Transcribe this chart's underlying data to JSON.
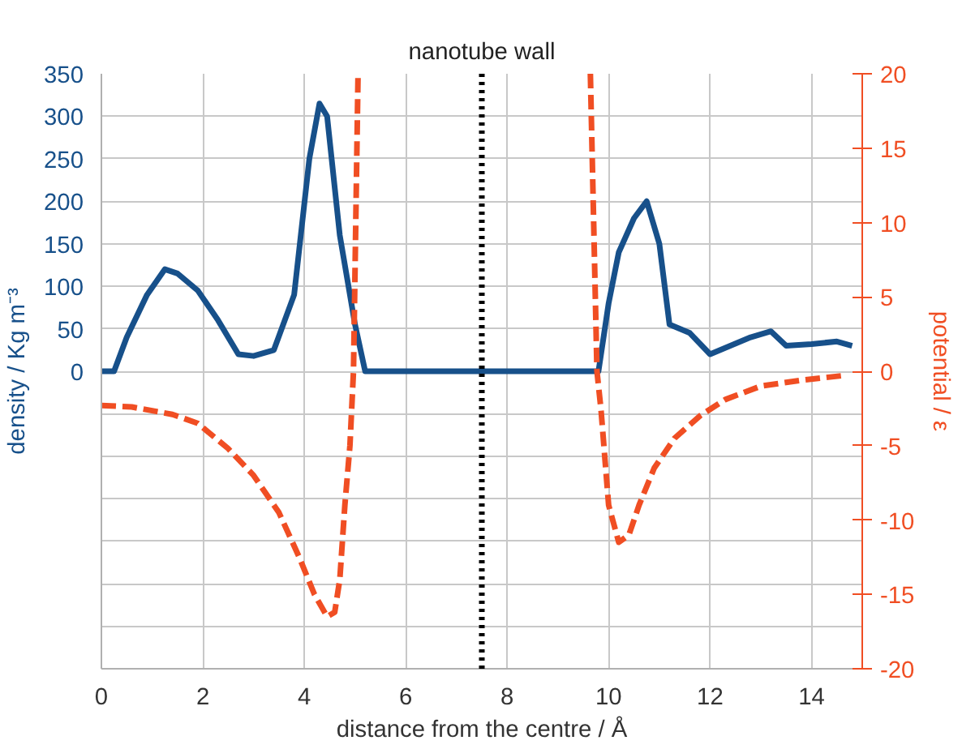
{
  "chart_data": {
    "type": "line",
    "xlabel": "distance from the centre / Å",
    "ylabel": "density / Kg m⁻³",
    "y2label": "potential / ε",
    "xlim": [
      0,
      15
    ],
    "xticks": [
      0,
      2,
      4,
      6,
      8,
      10,
      12,
      14
    ],
    "ylim": [
      -350,
      350
    ],
    "yticks": [
      {
        "value": -350,
        "label": null
      },
      {
        "value": -300,
        "label": null
      },
      {
        "value": -250,
        "label": null
      },
      {
        "value": -200,
        "label": null
      },
      {
        "value": -150,
        "label": null
      },
      {
        "value": -100,
        "label": null
      },
      {
        "value": -50,
        "label": null
      },
      0,
      50,
      100,
      150,
      200,
      250,
      300,
      350
    ],
    "y2lim": [
      -20,
      20
    ],
    "y2ticks": [
      -20,
      -15,
      -10,
      -5,
      0,
      5,
      10,
      15,
      20
    ],
    "grid": true,
    "ref_lines": [
      {
        "axis": "x",
        "value": 7.5,
        "label": "nanotube wall",
        "color": "#000000",
        "line_style": "dotted"
      }
    ],
    "series": [
      {
        "color": "#17508a",
        "line_style": "solid",
        "x": [
          0,
          0.25,
          0.5,
          0.9,
          1.25,
          1.5,
          1.9,
          2.3,
          2.7,
          3.0,
          3.4,
          3.8,
          4.1,
          4.3,
          4.45,
          4.7,
          5.0,
          5.2,
          5.5,
          9.8,
          10.0,
          10.2,
          10.5,
          10.75,
          11.0,
          11.2,
          11.6,
          12.0,
          12.4,
          12.8,
          13.2,
          13.5,
          14.0,
          14.5,
          14.8
        ],
        "values": [
          0,
          0,
          40,
          90,
          120,
          115,
          95,
          60,
          20,
          18,
          25,
          90,
          250,
          315,
          300,
          160,
          55,
          0,
          0,
          0,
          80,
          140,
          180,
          200,
          150,
          55,
          45,
          20,
          30,
          40,
          47,
          30,
          32,
          35,
          30
        ]
      },
      {
        "color": "#f04e23",
        "line_style": "dashed",
        "axis": "y2",
        "x": [
          0,
          0.6,
          1.4,
          1.9,
          2.5,
          3.0,
          3.5,
          3.9,
          4.2,
          4.45,
          4.6,
          4.7,
          4.8,
          4.9,
          4.97,
          5.06,
          7.5,
          9.64,
          9.77,
          9.85,
          10.0,
          10.2,
          10.4,
          10.6,
          10.9,
          11.3,
          11.8,
          12.3,
          13.0,
          13.8,
          14.6
        ],
        "values": [
          -2.3,
          -2.4,
          -2.9,
          -3.5,
          -5.2,
          -7.0,
          -9.5,
          -12.5,
          -15.0,
          -16.5,
          -16.2,
          -14,
          -9,
          -5,
          0,
          20,
          null,
          20,
          0,
          -2.6,
          -9,
          -11.5,
          -11,
          -9,
          -6.5,
          -4.5,
          -3,
          -1.9,
          -1.0,
          -0.6,
          -0.3
        ]
      }
    ]
  }
}
